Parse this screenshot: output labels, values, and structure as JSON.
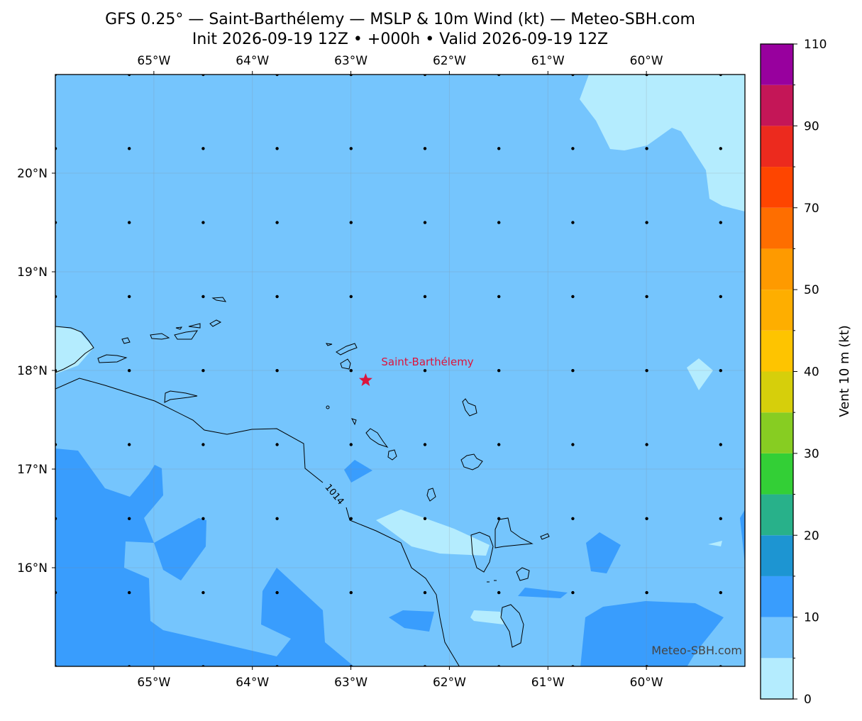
{
  "chart_data": {
    "type": "map",
    "title": "GFS 0.25° — Saint-Barthélemy — MSLP & 10m Wind (kt) — Meteo-SBH.com",
    "subtitle": "Init 2026-09-19 12Z • +000h • Valid 2026-09-19 12Z",
    "xlim": [
      -66,
      -59
    ],
    "ylim": [
      15,
      21
    ],
    "xticks": [
      {
        "value": -65,
        "label": "65°W"
      },
      {
        "value": -64,
        "label": "64°W"
      },
      {
        "value": -63,
        "label": "63°W"
      },
      {
        "value": -62,
        "label": "62°W"
      },
      {
        "value": -61,
        "label": "61°W"
      },
      {
        "value": -60,
        "label": "60°W"
      }
    ],
    "yticks": [
      {
        "value": 16,
        "label": "16°N"
      },
      {
        "value": 17,
        "label": "17°N"
      },
      {
        "value": 18,
        "label": "18°N"
      },
      {
        "value": 19,
        "label": "19°N"
      },
      {
        "value": 20,
        "label": "20°N"
      }
    ],
    "grid": true,
    "marker": {
      "label": "Saint-Barthélemy",
      "lon": -62.85,
      "lat": 17.9,
      "color": "#dc143c"
    },
    "contour_label": "1014",
    "watermark": "Meteo-SBH.com",
    "colorbar": {
      "label": "Vent 10 m (kt)",
      "levels": [
        0,
        5,
        10,
        15,
        20,
        25,
        30,
        35,
        40,
        45,
        50,
        60,
        70,
        80,
        90,
        100,
        110
      ],
      "colors": [
        "#b4ecfe",
        "#75c5fd",
        "#399dfd",
        "#1d95d2",
        "#28b18a",
        "#33cf36",
        "#87cd22",
        "#d6cf0b",
        "#fec400",
        "#feae00",
        "#fe9a00",
        "#fe6e00",
        "#fe4500",
        "#ec2a1e",
        "#c41657",
        "#98009e"
      ],
      "ticks": [
        0,
        10,
        20,
        30,
        40,
        50,
        70,
        90,
        110
      ]
    }
  }
}
